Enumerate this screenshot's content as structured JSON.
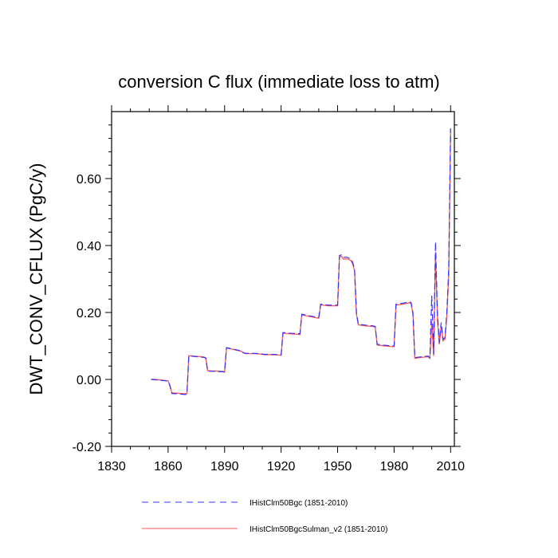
{
  "chart_data": {
    "type": "line",
    "title": "conversion C flux (immediate loss to atm)",
    "xlabel": "",
    "ylabel": "DWT_CONV_CFLUX  (PgC/y)",
    "xlim": [
      1830,
      2012
    ],
    "ylim": [
      -0.2,
      0.8
    ],
    "xticks": [
      1830,
      1860,
      1890,
      1920,
      1950,
      1980,
      2010
    ],
    "xtick_labels": [
      "1830",
      "1860",
      "1890",
      "1920",
      "1950",
      "1980",
      "2010"
    ],
    "yticks": [
      -0.2,
      0.0,
      0.2,
      0.4,
      0.6
    ],
    "ytick_labels": [
      "-0.20",
      "0.00",
      "0.20",
      "0.40",
      "0.60"
    ],
    "grid": false,
    "legend_position": "bottom",
    "series": [
      {
        "name": "IHistClm50Bgc (1851-2010)",
        "color": "#3333ff",
        "style": "dashed",
        "x": [
          1851,
          1855,
          1860,
          1861,
          1862,
          1865,
          1869,
          1870,
          1871,
          1875,
          1879,
          1880,
          1881,
          1885,
          1889,
          1890,
          1891,
          1895,
          1899,
          1900,
          1901,
          1905,
          1909,
          1910,
          1911,
          1915,
          1919,
          1920,
          1921,
          1925,
          1929,
          1930,
          1931,
          1935,
          1939,
          1940,
          1941,
          1945,
          1949,
          1950,
          1951,
          1952,
          1953,
          1955,
          1957,
          1958,
          1959,
          1960,
          1961,
          1965,
          1969,
          1970,
          1971,
          1975,
          1979,
          1980,
          1981,
          1985,
          1988,
          1989,
          1990,
          1991,
          1995,
          1998,
          1999,
          2000,
          2001,
          2002,
          2003,
          2004,
          2005,
          2006,
          2007,
          2008,
          2009,
          2010
        ],
        "y": [
          0.0,
          -0.002,
          -0.005,
          -0.02,
          -0.042,
          -0.043,
          -0.045,
          -0.044,
          0.07,
          0.068,
          0.066,
          0.064,
          0.025,
          0.024,
          0.023,
          0.022,
          0.095,
          0.09,
          0.085,
          0.08,
          0.078,
          0.078,
          0.077,
          0.076,
          0.075,
          0.075,
          0.074,
          0.073,
          0.14,
          0.138,
          0.137,
          0.136,
          0.195,
          0.19,
          0.186,
          0.185,
          0.225,
          0.222,
          0.222,
          0.222,
          0.37,
          0.372,
          0.365,
          0.365,
          0.36,
          0.35,
          0.33,
          0.2,
          0.165,
          0.162,
          0.16,
          0.158,
          0.105,
          0.102,
          0.1,
          0.1,
          0.225,
          0.228,
          0.232,
          0.23,
          0.2,
          0.065,
          0.068,
          0.07,
          0.065,
          0.25,
          0.075,
          0.41,
          0.2,
          0.11,
          0.17,
          0.12,
          0.125,
          0.2,
          0.33,
          0.75
        ]
      },
      {
        "name": "IHistClm50BgcSulman_v2 (1851-2010)",
        "color": "#ff5555",
        "style": "solid",
        "x": [
          1851,
          1855,
          1860,
          1861,
          1862,
          1865,
          1869,
          1870,
          1871,
          1875,
          1879,
          1880,
          1881,
          1885,
          1889,
          1890,
          1891,
          1895,
          1899,
          1900,
          1901,
          1905,
          1909,
          1910,
          1911,
          1915,
          1919,
          1920,
          1921,
          1925,
          1929,
          1930,
          1931,
          1935,
          1939,
          1940,
          1941,
          1945,
          1949,
          1950,
          1951,
          1952,
          1953,
          1955,
          1957,
          1958,
          1959,
          1960,
          1961,
          1965,
          1969,
          1970,
          1971,
          1975,
          1979,
          1980,
          1981,
          1985,
          1988,
          1989,
          1990,
          1991,
          1995,
          1998,
          1999,
          2000,
          2001,
          2002,
          2003,
          2004,
          2005,
          2006,
          2007,
          2008,
          2009,
          2010
        ],
        "y": [
          0.001,
          -0.001,
          -0.004,
          -0.018,
          -0.04,
          -0.041,
          -0.043,
          -0.042,
          0.071,
          0.069,
          0.067,
          0.065,
          0.026,
          0.025,
          0.024,
          0.023,
          0.094,
          0.089,
          0.084,
          0.079,
          0.077,
          0.077,
          0.076,
          0.075,
          0.074,
          0.074,
          0.073,
          0.072,
          0.138,
          0.136,
          0.135,
          0.134,
          0.193,
          0.188,
          0.184,
          0.183,
          0.223,
          0.22,
          0.22,
          0.22,
          0.366,
          0.368,
          0.36,
          0.36,
          0.356,
          0.345,
          0.325,
          0.195,
          0.163,
          0.16,
          0.158,
          0.156,
          0.103,
          0.1,
          0.098,
          0.098,
          0.222,
          0.225,
          0.229,
          0.227,
          0.195,
          0.063,
          0.066,
          0.068,
          0.063,
          0.175,
          0.07,
          0.38,
          0.18,
          0.105,
          0.16,
          0.115,
          0.12,
          0.19,
          0.31,
          0.74
        ]
      }
    ]
  }
}
